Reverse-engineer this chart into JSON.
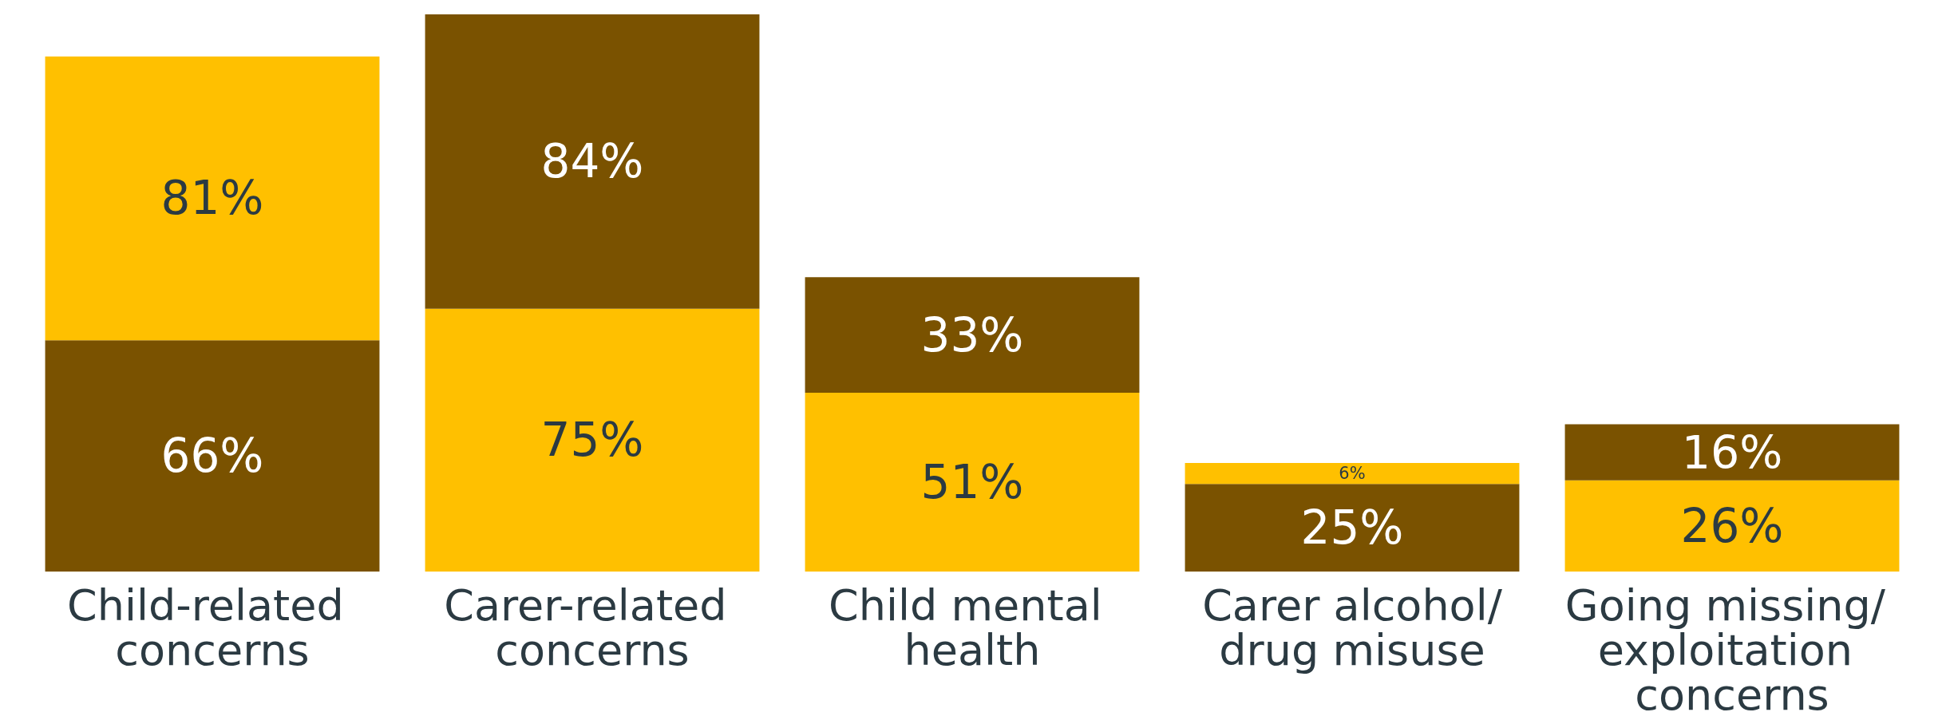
{
  "chart_data": {
    "type": "bar",
    "stacked": true,
    "categories": [
      "Child-related concerns",
      "Carer-related concerns",
      "Child mental health",
      "Carer alcohol/drug misuse",
      "Going missing/ exploitation concerns"
    ],
    "series": [
      {
        "values": [
          66,
          75,
          51,
          25,
          26
        ],
        "colors": [
          "#7a5200",
          "#ffc000",
          "#ffc000",
          "#7a5200",
          "#ffc000"
        ],
        "value_labels": [
          "66%",
          "75%",
          "51%",
          "25%",
          "26%"
        ]
      },
      {
        "values": [
          81,
          84,
          33,
          6,
          16
        ],
        "colors": [
          "#ffc000",
          "#7a5200",
          "#7a5200",
          "#ffc000",
          "#7a5200"
        ],
        "value_labels": [
          "81%",
          "84%",
          "33%",
          "6%",
          "16%"
        ]
      }
    ],
    "grid": false
  }
}
